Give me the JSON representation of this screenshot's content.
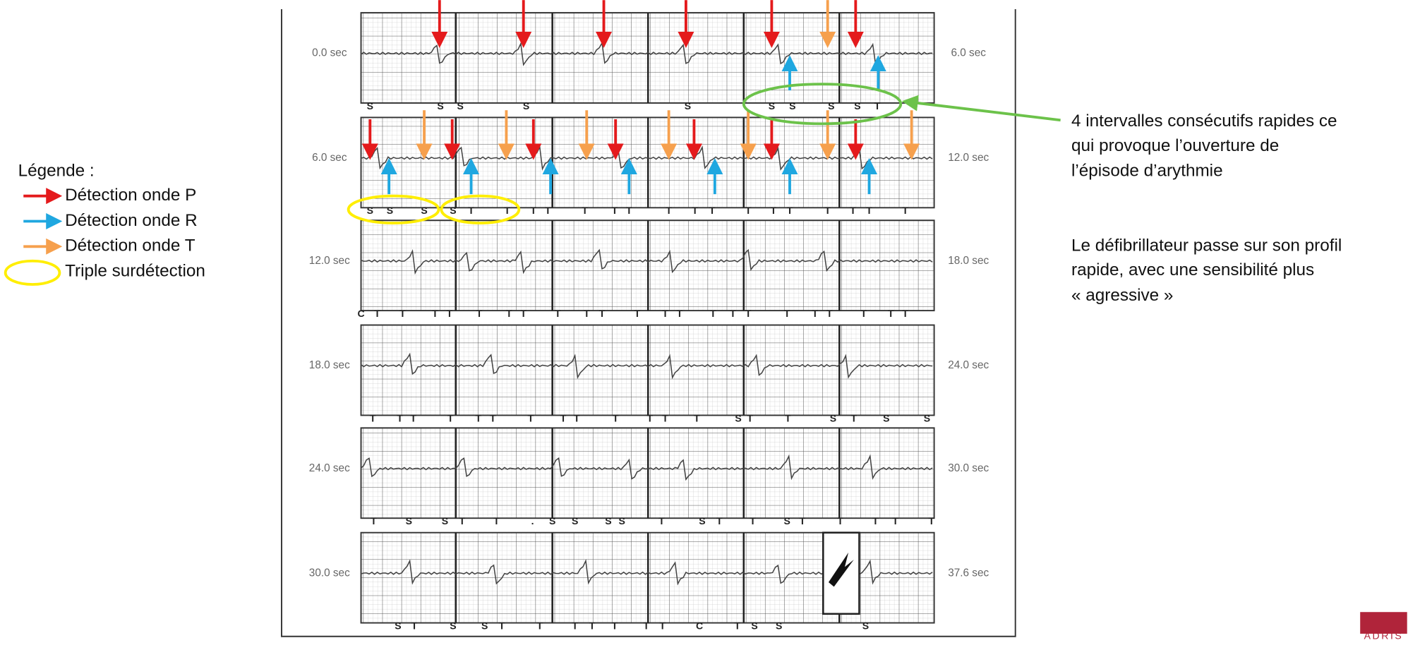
{
  "legend": {
    "title": "Légende :",
    "items": [
      "Détection onde P",
      "Détection onde R",
      "Détection onde T",
      "Triple surdétection"
    ]
  },
  "annotations": [
    [
      "4 intervalles consécutifs rapides ce",
      "qui provoque l’ouverture de",
      "l’épisode d’arythmie"
    ],
    [
      "Le défibrillateur passe sur son profil",
      "rapide, avec une sensibilité plus",
      "« agressive »"
    ]
  ],
  "strips": [
    {
      "start": "0.0 sec",
      "end": "6.0 sec",
      "markers": [
        "S",
        "S",
        "S",
        "S",
        "S",
        "S",
        "S",
        "S",
        "S",
        "T"
      ]
    },
    {
      "start": "6.0 sec",
      "end": "12.0 sec",
      "markers": [
        "S",
        "S",
        "S",
        "S",
        "T",
        "T",
        "T",
        "T",
        "T",
        "T",
        "T",
        "T",
        "T",
        "T",
        "T",
        "T",
        "T",
        "T",
        "T",
        "T",
        "T"
      ]
    },
    {
      "start": "12.0 sec",
      "end": "18.0 sec",
      "markers": [
        "C",
        "T",
        "T",
        "T",
        "T",
        "T",
        "T",
        "T",
        "T",
        "T",
        "T",
        "T",
        "T",
        "T",
        "T",
        "T",
        "T",
        "T",
        "T",
        "T",
        "T",
        "T",
        "T"
      ]
    },
    {
      "start": "18.0 sec",
      "end": "24.0 sec",
      "markers": [
        "T",
        "T",
        "T",
        "T",
        "T",
        "T",
        "T",
        "T",
        "T",
        "T",
        "T",
        "T",
        "T",
        "S",
        "T",
        "T",
        "S",
        "T",
        "S",
        "S"
      ]
    },
    {
      "start": "24.0 sec",
      "end": "30.0 sec",
      "markers": [
        "T",
        "S",
        "S",
        "T",
        "T",
        ".",
        "S",
        "S",
        "S",
        "S",
        "T",
        "S",
        "T",
        "T",
        "S",
        "T",
        "T",
        "T",
        "T",
        "T"
      ]
    },
    {
      "start": "30.0 sec",
      "end": "37.6 sec",
      "markers": [
        "S",
        "T",
        "S",
        "S",
        "T",
        "T",
        "T",
        "T",
        "T",
        "T",
        "T",
        "C",
        "T",
        "S",
        "S",
        "S"
      ]
    }
  ],
  "logo": "ADRIS"
}
